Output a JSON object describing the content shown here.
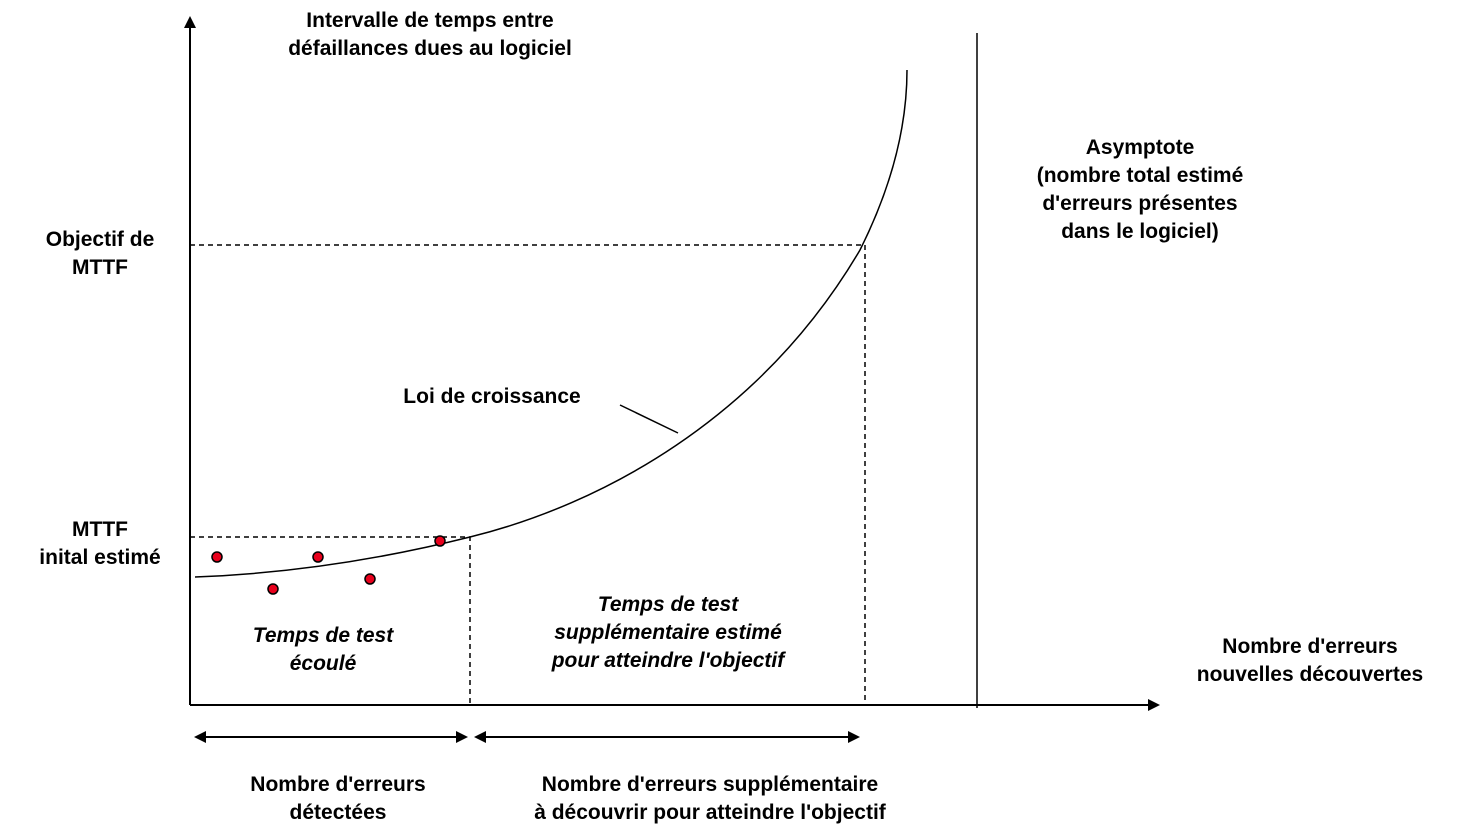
{
  "y_axis_title": [
    "Intervalle de temps entre",
    "défaillances dues au logiciel"
  ],
  "x_axis_title": [
    "Nombre d'erreurs",
    "nouvelles découvertes"
  ],
  "target_label": [
    "Objectif de",
    "MTTF"
  ],
  "initial_label": [
    "MTTF",
    "inital estimé"
  ],
  "curve_label": "Loi de croissance",
  "asymptote_label": [
    "Asymptote",
    "(nombre total estimé",
    "d'erreurs présentes",
    "dans le logiciel)"
  ],
  "elapsed_label": [
    "Temps de test",
    "écoulé"
  ],
  "extra_time_label": [
    "Temps de test",
    "supplémentaire estimé",
    "pour atteindre l'objectif"
  ],
  "detected_label": [
    "Nombre d'erreurs",
    "détectées"
  ],
  "remaining_label": [
    "Nombre d'erreurs supplémentaire",
    "à découvrir pour atteindre l'objectif"
  ]
}
